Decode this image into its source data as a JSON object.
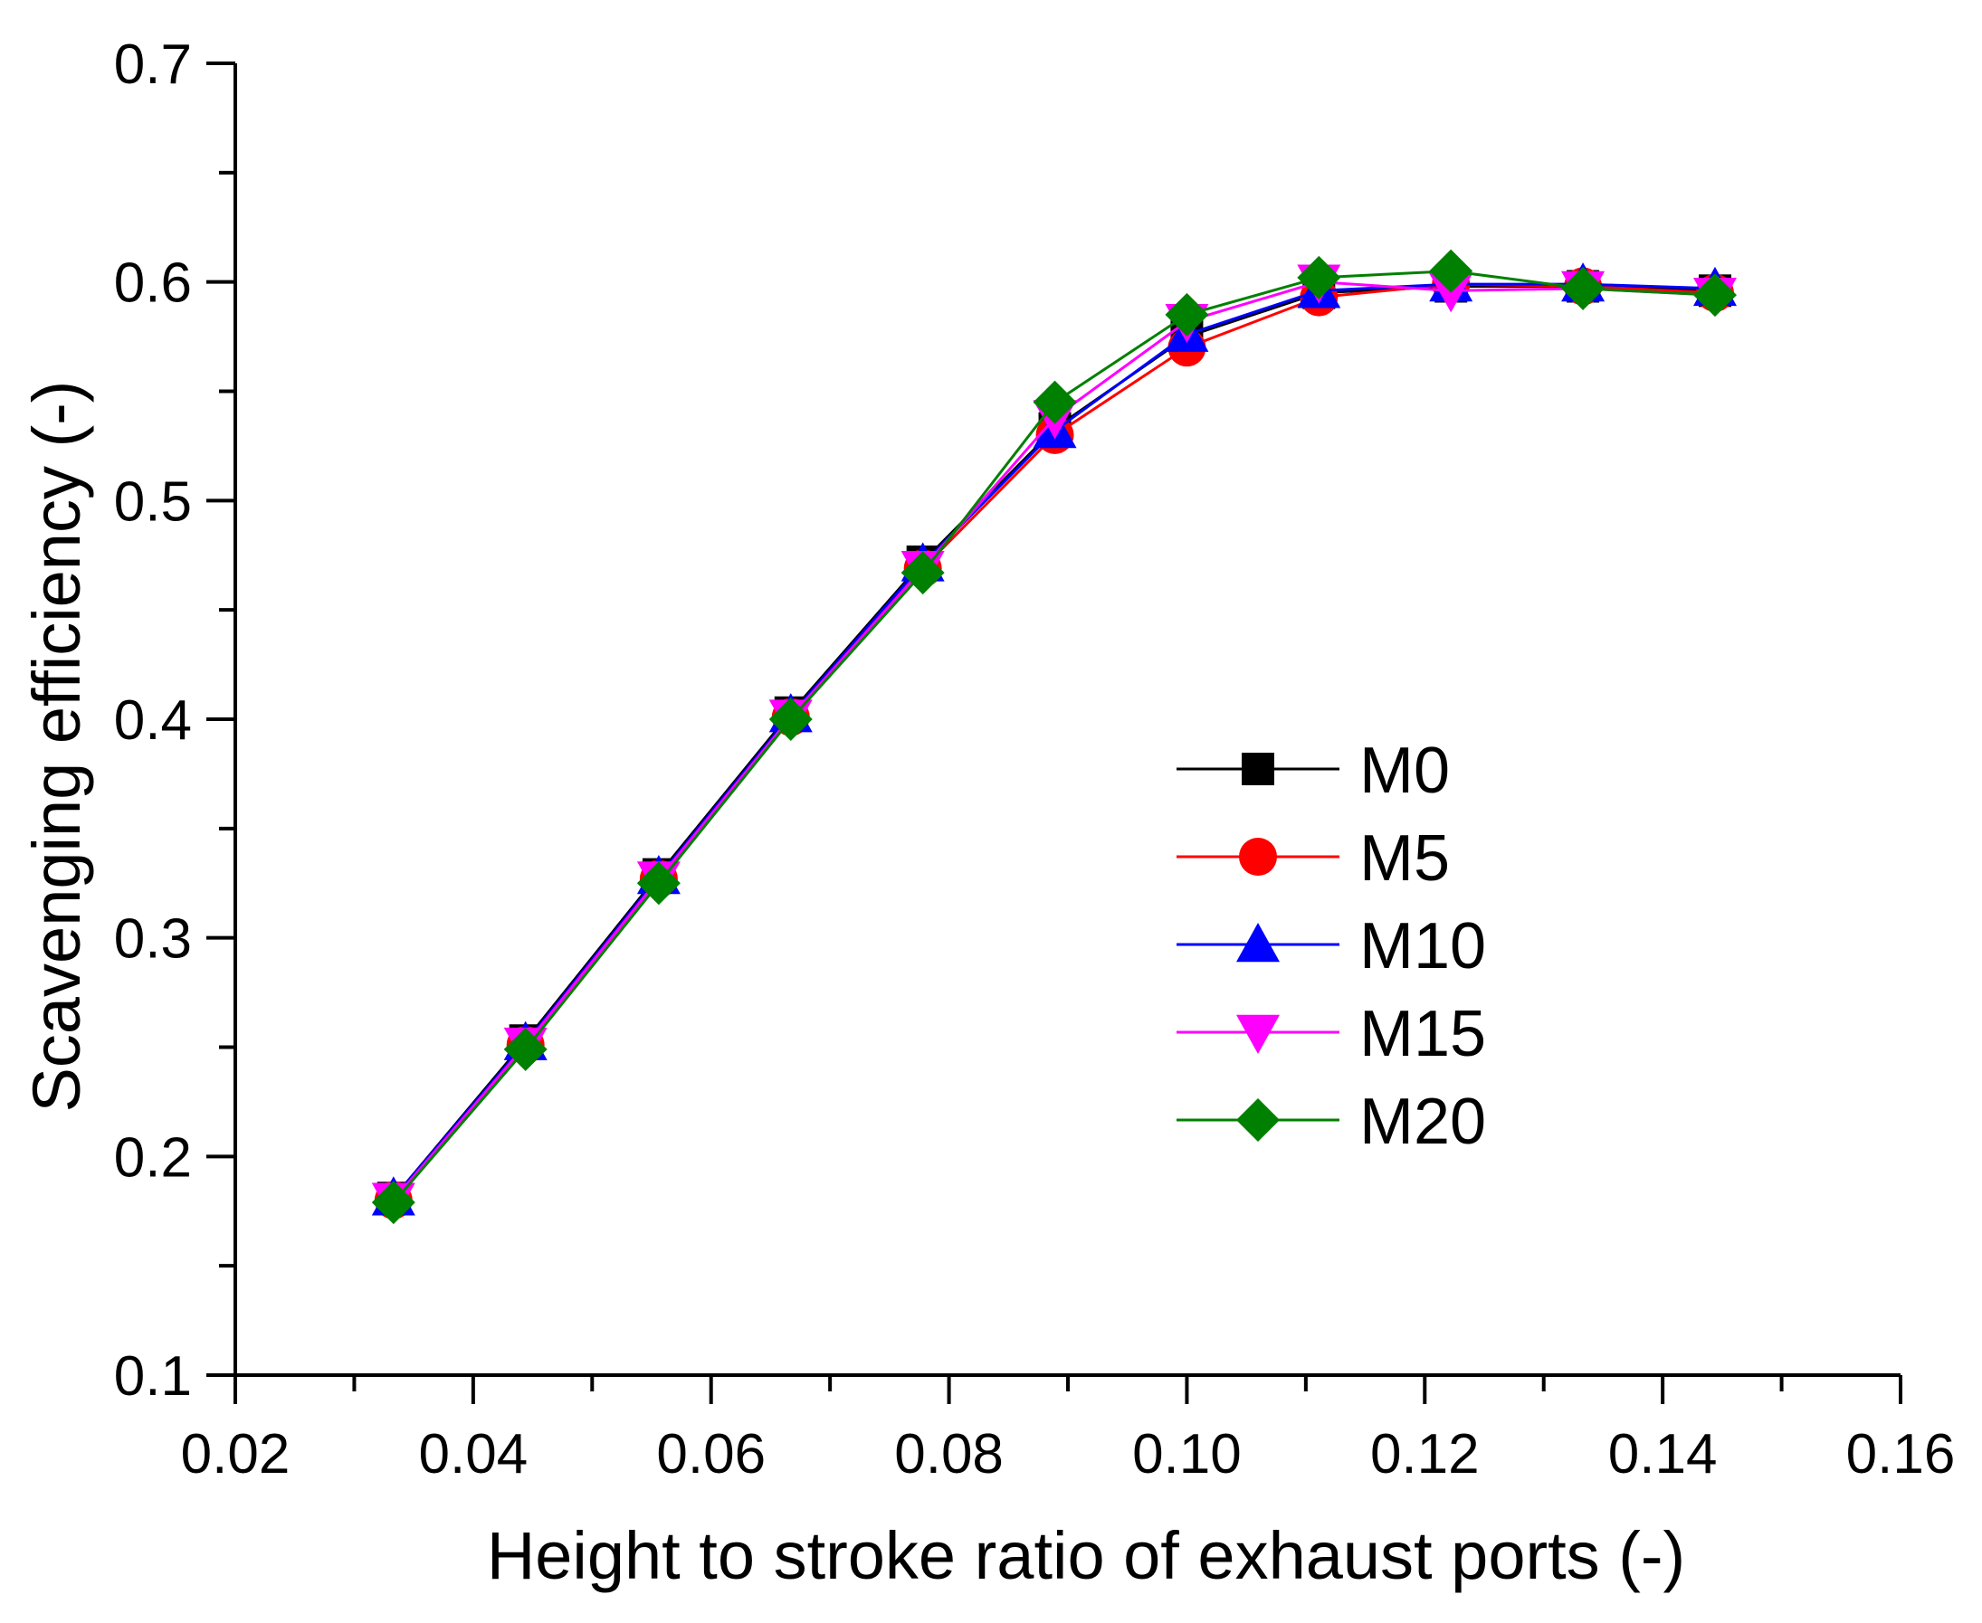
{
  "chart_data": {
    "type": "line",
    "title": "",
    "xlabel": "Height  to stroke ratio of exhaust ports (-)",
    "ylabel": "Scavenging efficiency (-)",
    "xlim": [
      0.02,
      0.16
    ],
    "ylim": [
      0.1,
      0.7
    ],
    "xticks": [
      "0.02",
      "0.04",
      "0.06",
      "0.08",
      "0.10",
      "0.12",
      "0.14",
      "0.16"
    ],
    "yticks": [
      "0.1",
      "0.2",
      "0.3",
      "0.4",
      "0.5",
      "0.6",
      "0.7"
    ],
    "x": [
      0.0333,
      0.0444,
      0.0556,
      0.0667,
      0.0778,
      0.0889,
      0.1,
      0.1111,
      0.1222,
      0.1333,
      0.1444
    ],
    "legend_position": "center-right",
    "series": [
      {
        "name": "M0",
        "color": "#000000",
        "marker": "square",
        "values": [
          0.181,
          0.253,
          0.329,
          0.403,
          0.472,
          0.533,
          0.575,
          0.595,
          0.598,
          0.598,
          0.596
        ]
      },
      {
        "name": "M5",
        "color": "#ff0000",
        "marker": "circle",
        "values": [
          0.18,
          0.251,
          0.327,
          0.401,
          0.469,
          0.53,
          0.57,
          0.593,
          0.599,
          0.598,
          0.595
        ]
      },
      {
        "name": "M10",
        "color": "#0000ff",
        "marker": "triangle-up",
        "values": [
          0.181,
          0.252,
          0.328,
          0.402,
          0.471,
          0.532,
          0.576,
          0.596,
          0.599,
          0.599,
          0.597
        ]
      },
      {
        "name": "M15",
        "color": "#ff00ff",
        "marker": "triangle-down",
        "values": [
          0.18,
          0.251,
          0.327,
          0.401,
          0.469,
          0.538,
          0.582,
          0.6,
          0.596,
          0.597,
          0.594
        ]
      },
      {
        "name": "M20",
        "color": "#008000",
        "marker": "diamond",
        "values": [
          0.179,
          0.249,
          0.325,
          0.4,
          0.467,
          0.545,
          0.585,
          0.602,
          0.605,
          0.597,
          0.594
        ]
      }
    ]
  }
}
